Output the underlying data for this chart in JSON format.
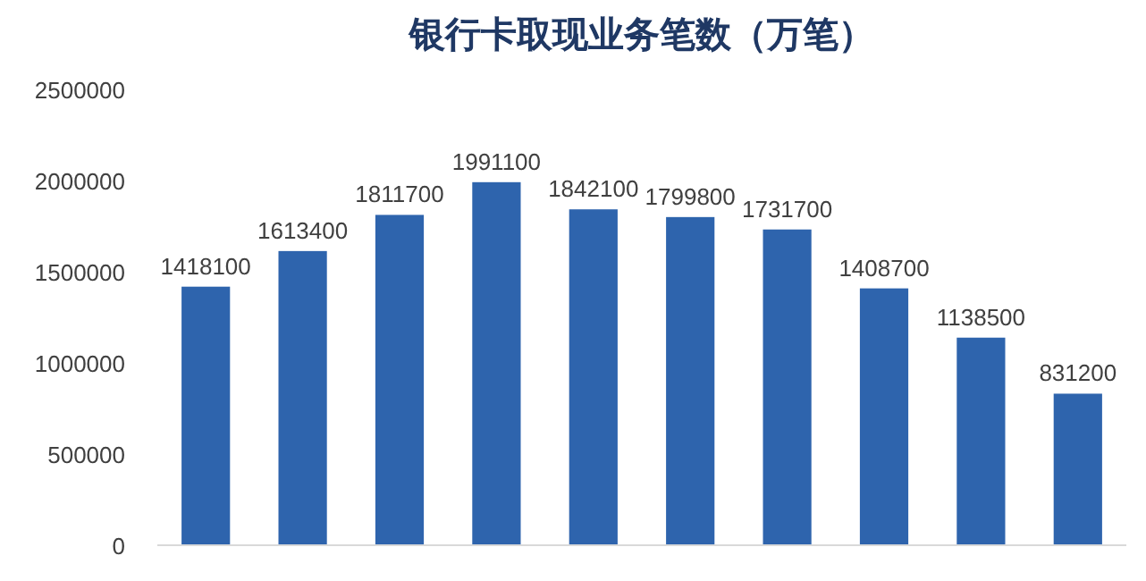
{
  "chart_data": {
    "type": "bar",
    "title": "银行卡取现业务笔数（万笔）",
    "categories": [
      null,
      null,
      null,
      null,
      null,
      null,
      null,
      null,
      null,
      null
    ],
    "values": [
      1418100,
      1613400,
      1811700,
      1991100,
      1842100,
      1799800,
      1731700,
      1408700,
      1138500,
      831200
    ],
    "color": "#2e64ad",
    "ylim": [
      0,
      2500000
    ],
    "yticks": [
      0,
      500000,
      1000000,
      1500000,
      2000000,
      2500000
    ],
    "grid": false,
    "data_labels": true
  }
}
